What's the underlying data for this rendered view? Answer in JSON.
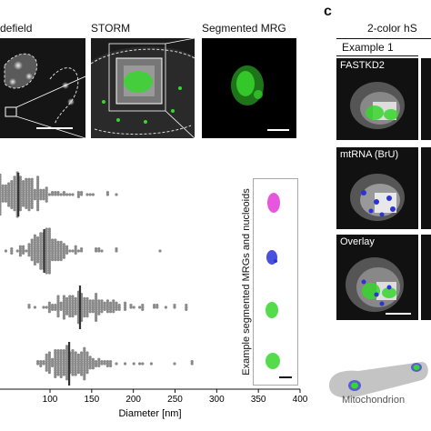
{
  "panel_letter_c": "c",
  "top_row": {
    "widefield_label": "defield",
    "storm_label": "STORM",
    "segmented_label": "Segmented MRG"
  },
  "right_panel": {
    "header": "2-color hS",
    "example_label": "Example 1",
    "rows": [
      {
        "label": "FASTKD2"
      },
      {
        "label": "mtRNA (BrU)"
      },
      {
        "label": "Overlay"
      }
    ],
    "mito_label": "Mitochondrion"
  },
  "inset_label": "Example segmented MRGs and nucleoids",
  "colors": {
    "green": "#37d62e",
    "magenta": "#e23ad8",
    "blue": "#2a33d6",
    "gray_dot": "#8a8a8a",
    "median_line": "#333333"
  },
  "chart_data": {
    "type": "scatter",
    "xlabel": "Diameter [nm]",
    "xlim": [
      40,
      400
    ],
    "xticks": [
      100,
      150,
      200,
      250,
      300,
      350,
      400
    ],
    "xtick_labels": [
      "100",
      "150",
      "200",
      "250",
      "300",
      "350",
      "400"
    ],
    "series": [
      {
        "median": 62,
        "spread": 18,
        "min": 40,
        "max": 260,
        "count": 230
      },
      {
        "median": 93,
        "spread": 16,
        "min": 40,
        "max": 285,
        "count": 200
      },
      {
        "median": 136,
        "spread": 24,
        "min": 52,
        "max": 262,
        "count": 210
      },
      {
        "median": 123,
        "spread": 18,
        "min": 40,
        "max": 275,
        "count": 210
      }
    ]
  }
}
